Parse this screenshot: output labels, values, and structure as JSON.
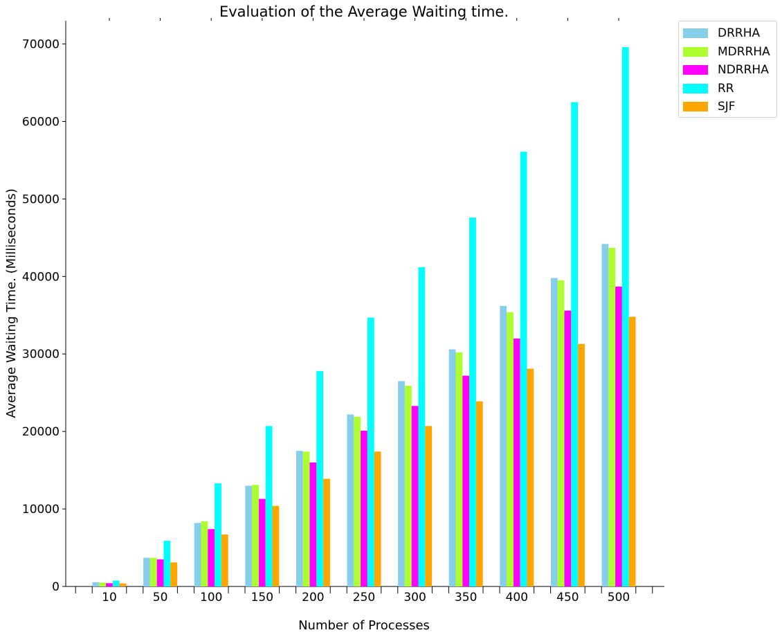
{
  "chart_data": {
    "type": "bar",
    "title": "Evaluation of the Average Waiting time.",
    "xlabel": "Number of Processes",
    "ylabel": "Average Waiting Time. (Milliseconds)",
    "categories": [
      "10",
      "50",
      "100",
      "150",
      "200",
      "250",
      "300",
      "350",
      "400",
      "450",
      "500"
    ],
    "ylim": [
      0,
      73000
    ],
    "yticks": [
      0,
      10000,
      20000,
      30000,
      40000,
      50000,
      60000,
      70000
    ],
    "grid": false,
    "legend_position": "outside-top-right",
    "series": [
      {
        "name": "DRRHA",
        "color": "#87ceeb",
        "values": [
          550,
          3700,
          8200,
          13000,
          17500,
          22200,
          26500,
          30600,
          36200,
          39800,
          44200
        ]
      },
      {
        "name": "MDRRHA",
        "color": "#adff2f",
        "values": [
          500,
          3700,
          8400,
          13100,
          17400,
          21900,
          25900,
          30200,
          35400,
          39500,
          43700
        ]
      },
      {
        "name": "NDRRHA",
        "color": "#ff00ff",
        "values": [
          420,
          3500,
          7400,
          11300,
          16000,
          20100,
          23300,
          27200,
          32000,
          35600,
          38700
        ]
      },
      {
        "name": "RR",
        "color": "#00ffff",
        "values": [
          750,
          5900,
          13300,
          20700,
          27800,
          34700,
          41200,
          47600,
          56100,
          62500,
          69600
        ]
      },
      {
        "name": "SJF",
        "color": "#ffa500",
        "values": [
          400,
          3100,
          6700,
          10400,
          13900,
          17400,
          20700,
          23900,
          28100,
          31300,
          34800
        ]
      }
    ]
  }
}
